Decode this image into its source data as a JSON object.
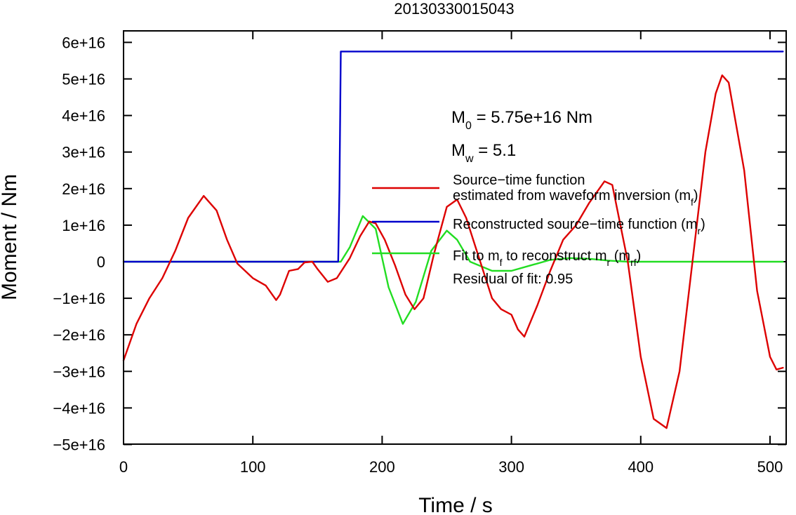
{
  "chart_data": {
    "type": "line",
    "title": "20130330015043",
    "xlabel": "Time / s",
    "ylabel": "Moment / Nm",
    "xlim": [
      0,
      510
    ],
    "ylim": [
      -50000000000000000,
      62000000000000000
    ],
    "x_ticks": [
      0,
      100,
      200,
      300,
      400,
      500
    ],
    "x_tick_labels": [
      "0",
      "100",
      "200",
      "300",
      "400",
      "500"
    ],
    "y_ticks": [
      -50000000000000000,
      -40000000000000000,
      -30000000000000000,
      -20000000000000000,
      -10000000000000000,
      0,
      10000000000000000,
      20000000000000000,
      30000000000000000,
      40000000000000000,
      50000000000000000,
      60000000000000000
    ],
    "y_tick_labels": [
      "−5e+16",
      "−4e+16",
      "−3e+16",
      "−2e+16",
      "−1e+16",
      "0",
      "1e+16",
      "2e+16",
      "3e+16",
      "4e+16",
      "5e+16",
      "6e+16"
    ],
    "grid": false,
    "legend_position": "right",
    "annotations": {
      "m0": {
        "sym": "M",
        "sub": "0",
        "rest": " = 5.75e+16 Nm"
      },
      "mw": {
        "sym": "M",
        "sub": "w",
        "rest": " = 5.1"
      },
      "residual": "Residual of fit: 0.95"
    },
    "legend": [
      {
        "color": "#dd0000",
        "lines": [
          [
            {
              "t": "Source−time function"
            }
          ],
          [
            {
              "t": "estimated from waveform inversion (m"
            },
            {
              "t": "f",
              "sub": true
            },
            {
              "t": ")"
            }
          ]
        ]
      },
      {
        "color": "#0000cc",
        "lines": [
          [
            {
              "t": "Reconstructed source−time function (m"
            },
            {
              "t": "r",
              "sub": true
            },
            {
              "t": ")"
            }
          ]
        ]
      },
      {
        "color": "#22dd22",
        "lines": [
          [
            {
              "t": "Fit to m"
            },
            {
              "t": "f",
              "sub": true
            },
            {
              "t": " to reconstruct m"
            },
            {
              "t": "r",
              "sub": true
            },
            {
              "t": " (m"
            },
            {
              "t": "rf",
              "sub": true
            },
            {
              "t": ")"
            }
          ]
        ]
      }
    ],
    "series": [
      {
        "name": "Source−time function estimated from waveform inversion (mf)",
        "color": "#dd0000",
        "x": [
          0,
          10,
          20,
          30,
          40,
          50,
          62,
          72,
          80,
          88,
          100,
          110,
          118,
          121,
          128,
          135,
          140,
          146,
          150,
          158,
          165,
          175,
          183,
          190,
          195,
          202,
          210,
          218,
          225,
          232,
          240,
          250,
          258,
          265,
          275,
          285,
          292,
          300,
          305,
          310,
          320,
          330,
          340,
          350,
          360,
          372,
          378,
          390,
          400,
          410,
          420,
          430,
          440,
          450,
          458,
          463,
          468,
          480,
          490,
          500,
          505,
          510
        ],
        "y": [
          -27000000000000000,
          -17000000000000000,
          -10000000000000000,
          -4500000000000000,
          3000000000000000,
          12000000000000000,
          18000000000000000,
          14000000000000000,
          6000000000000000,
          -500000000000000,
          -4500000000000000,
          -6500000000000000,
          -10500000000000000,
          -9000000000000000,
          -2500000000000000,
          -2000000000000000,
          -200000000000000,
          0,
          -2000000000000000,
          -5500000000000000,
          -4500000000000000,
          1000000000000000,
          7000000000000000,
          11000000000000000,
          10500000000000000,
          6000000000000000,
          -1000000000000000,
          -9000000000000000,
          -13000000000000000,
          -10000000000000000,
          2000000000000000,
          15000000000000000,
          17000000000000000,
          12000000000000000,
          1000000000000000,
          -10000000000000000,
          -13000000000000000,
          -14500000000000000,
          -18500000000000000,
          -20500000000000000,
          -12000000000000000,
          -2500000000000000,
          6000000000000000,
          10000000000000000,
          16000000000000000,
          22000000000000000,
          21000000000000000,
          0,
          -26000000000000000,
          -43000000000000000,
          -45500000000000000,
          -30000000000000000,
          0,
          30000000000000000,
          46000000000000000,
          51000000000000000,
          49000000000000000,
          25000000000000000,
          -8000000000000000,
          -26000000000000000,
          -29500000000000000,
          -29000000000000000
        ]
      },
      {
        "name": "Reconstructed source−time function (mr)",
        "color": "#0000cc",
        "x": [
          0,
          166,
          167,
          168,
          510
        ],
        "y": [
          0,
          0,
          20000000000000000,
          57500000000000000,
          57500000000000000
        ]
      },
      {
        "name": "Fit to mf to reconstruct mr (mrf)",
        "color": "#22dd22",
        "x": [
          0,
          168,
          175,
          185,
          195,
          205,
          216,
          226,
          238,
          250,
          258,
          268,
          285,
          300,
          315,
          330,
          345,
          360,
          375,
          390,
          410,
          430,
          450,
          470,
          490,
          510
        ],
        "y": [
          0,
          0,
          4000000000000000,
          12500000000000000,
          9000000000000000,
          -7000000000000000,
          -17000000000000000,
          -11000000000000000,
          3000000000000000,
          8500000000000000,
          6000000000000000,
          0,
          -2500000000000000,
          -2500000000000000,
          -1000000000000000,
          500000000000000,
          1000000000000000,
          800000000000000,
          300000000000000,
          0,
          0,
          0,
          0,
          0,
          0,
          0
        ]
      }
    ]
  }
}
